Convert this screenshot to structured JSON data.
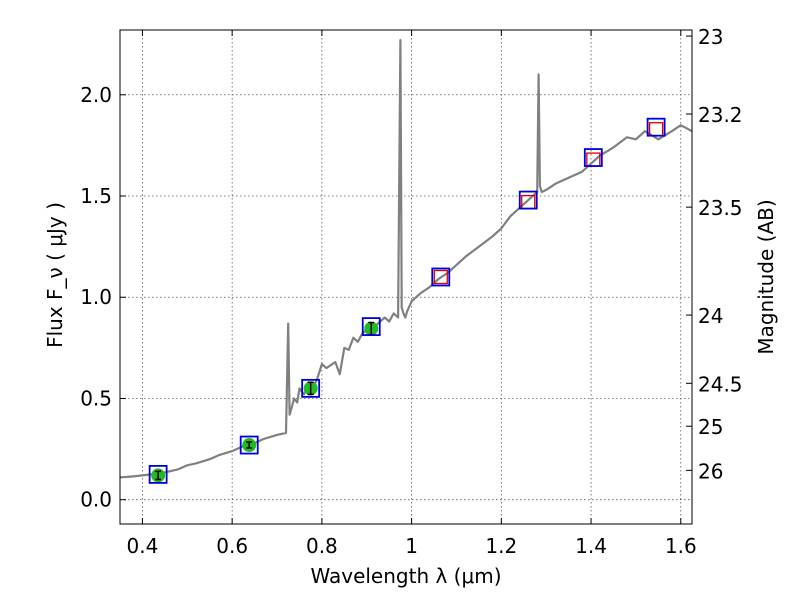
{
  "chart_data": {
    "type": "line",
    "title": "",
    "xlabel": "Wavelength  λ (μm)",
    "ylabel": "Flux  F_ν  ( μJy )",
    "y2label": "Magnitude (AB)",
    "xlim": [
      0.35,
      1.625
    ],
    "ylim": [
      -0.12,
      2.32
    ],
    "grid": true,
    "x_ticks": [
      {
        "value": 0.4,
        "label": "0.4"
      },
      {
        "value": 0.6,
        "label": "0.6"
      },
      {
        "value": 0.8,
        "label": "0.8"
      },
      {
        "value": 1.0,
        "label": "1"
      },
      {
        "value": 1.2,
        "label": "1.2"
      },
      {
        "value": 1.4,
        "label": "1.4"
      },
      {
        "value": 1.6,
        "label": "1.6"
      }
    ],
    "y_ticks": [
      {
        "value": 0.0,
        "label": "0.0"
      },
      {
        "value": 0.5,
        "label": "0.5"
      },
      {
        "value": 1.0,
        "label": "1.0"
      },
      {
        "value": 1.5,
        "label": "1.5"
      },
      {
        "value": 2.0,
        "label": "2.0"
      }
    ],
    "y2_ticks": [
      {
        "flux": 2.29,
        "label": "23"
      },
      {
        "flux": 1.905,
        "label": "23.2"
      },
      {
        "flux": 1.445,
        "label": "23.5"
      },
      {
        "flux": 0.912,
        "label": "24"
      },
      {
        "flux": 0.575,
        "label": "24.5"
      },
      {
        "flux": 0.363,
        "label": "25"
      },
      {
        "flux": 0.145,
        "label": "26"
      }
    ],
    "colors": {
      "spectrum": "#808080",
      "measured_fill": "#22bb22",
      "model_box": "#0000dd",
      "predicted_box": "#dd0000"
    },
    "series": [
      {
        "kind": "spectrum",
        "x": [
          0.35,
          0.38,
          0.4,
          0.42,
          0.45,
          0.48,
          0.5,
          0.52,
          0.55,
          0.57,
          0.6,
          0.62,
          0.65,
          0.67,
          0.7,
          0.72,
          0.725,
          0.728,
          0.732,
          0.738,
          0.745,
          0.75,
          0.76,
          0.77,
          0.78,
          0.79,
          0.8,
          0.81,
          0.83,
          0.84,
          0.85,
          0.86,
          0.87,
          0.88,
          0.89,
          0.9,
          0.92,
          0.94,
          0.95,
          0.96,
          0.97,
          0.975,
          0.978,
          0.982,
          0.986,
          0.99,
          1.0,
          1.02,
          1.04,
          1.06,
          1.08,
          1.1,
          1.12,
          1.15,
          1.18,
          1.2,
          1.22,
          1.25,
          1.26,
          1.27,
          1.28,
          1.283,
          1.286,
          1.29,
          1.3,
          1.32,
          1.35,
          1.38,
          1.4,
          1.42,
          1.45,
          1.48,
          1.5,
          1.52,
          1.55,
          1.58,
          1.6,
          1.625
        ],
        "y": [
          0.11,
          0.115,
          0.12,
          0.125,
          0.135,
          0.15,
          0.17,
          0.18,
          0.2,
          0.22,
          0.24,
          0.26,
          0.28,
          0.3,
          0.32,
          0.33,
          0.87,
          0.42,
          0.45,
          0.5,
          0.48,
          0.55,
          0.52,
          0.57,
          0.55,
          0.6,
          0.67,
          0.65,
          0.68,
          0.62,
          0.75,
          0.74,
          0.8,
          0.78,
          0.82,
          0.84,
          0.86,
          0.9,
          0.88,
          0.92,
          0.9,
          2.27,
          0.95,
          0.92,
          0.9,
          0.93,
          0.98,
          1.02,
          1.05,
          1.09,
          1.12,
          1.16,
          1.2,
          1.25,
          1.3,
          1.34,
          1.4,
          1.46,
          1.48,
          1.5,
          1.52,
          2.1,
          1.55,
          1.52,
          1.53,
          1.56,
          1.59,
          1.62,
          1.66,
          1.7,
          1.74,
          1.79,
          1.78,
          1.82,
          1.78,
          1.82,
          1.85,
          1.82
        ]
      },
      {
        "kind": "measured",
        "x": [
          0.435,
          0.638,
          0.775,
          0.91
        ],
        "y": [
          0.12,
          0.27,
          0.55,
          0.845
        ],
        "yerr": [
          0.02,
          0.015,
          0.03,
          0.03
        ]
      },
      {
        "kind": "predicted",
        "x": [
          1.065,
          1.26,
          1.405,
          1.545
        ],
        "y": [
          1.1,
          1.47,
          1.68,
          1.83
        ]
      },
      {
        "kind": "model",
        "x": [
          0.435,
          0.638,
          0.775,
          0.91,
          1.065,
          1.26,
          1.405,
          1.545
        ],
        "y": [
          0.125,
          0.27,
          0.55,
          0.855,
          1.1,
          1.48,
          1.69,
          1.84
        ]
      }
    ]
  }
}
